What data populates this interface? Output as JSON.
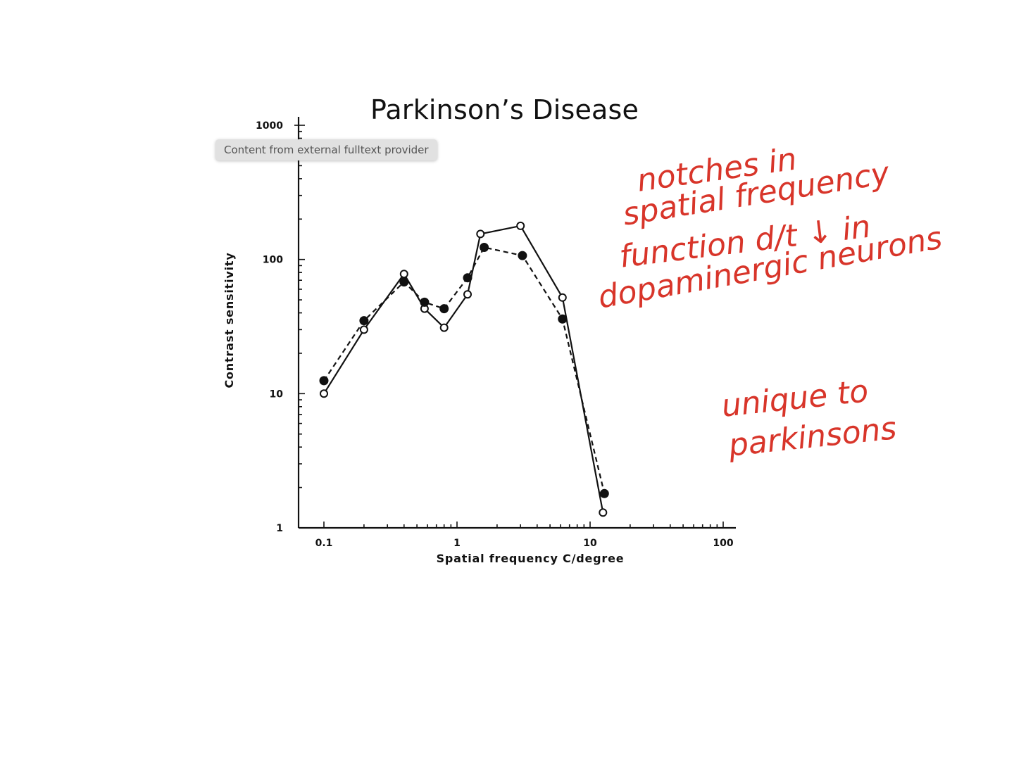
{
  "slide": {
    "title": "Parkinson’s Disease",
    "tooltip": "Content from external fulltext provider"
  },
  "annotations": {
    "note1_lines": [
      "notches in",
      "spatial frequency",
      "function d/t ↓ in",
      "dopaminergic neurons"
    ],
    "note2_lines": [
      "unique to",
      "parkinsons"
    ],
    "color": "#d8352a"
  },
  "chart_data": {
    "type": "line",
    "title": "",
    "xlabel": "Spatial frequency C/degree",
    "ylabel": "Contrast sensitivity",
    "xscale": "log",
    "yscale": "log",
    "xlim": [
      0.1,
      100
    ],
    "ylim": [
      1,
      1000
    ],
    "xticks": [
      0.1,
      1,
      10,
      100
    ],
    "xtick_labels": [
      "0.1",
      "1",
      "10",
      "100"
    ],
    "yticks": [
      1,
      10,
      100,
      1000
    ],
    "ytick_labels": [
      "1",
      "10",
      "100",
      "1000"
    ],
    "grid": false,
    "series": [
      {
        "marker": "open-circle",
        "line": "solid",
        "points": [
          [
            0.1,
            10
          ],
          [
            0.2,
            30
          ],
          [
            0.4,
            78
          ],
          [
            0.57,
            43
          ],
          [
            0.8,
            31
          ],
          [
            1.2,
            55
          ],
          [
            1.5,
            155
          ],
          [
            3.0,
            178
          ],
          [
            6.2,
            52
          ],
          [
            12.5,
            1.3
          ]
        ]
      },
      {
        "marker": "filled-circle",
        "line": "dashed",
        "points": [
          [
            0.1,
            12.5
          ],
          [
            0.2,
            35
          ],
          [
            0.4,
            68
          ],
          [
            0.57,
            48
          ],
          [
            0.8,
            43
          ],
          [
            1.2,
            73
          ],
          [
            1.6,
            123
          ],
          [
            3.1,
            107
          ],
          [
            6.2,
            36
          ],
          [
            12.8,
            1.8
          ]
        ]
      }
    ]
  }
}
